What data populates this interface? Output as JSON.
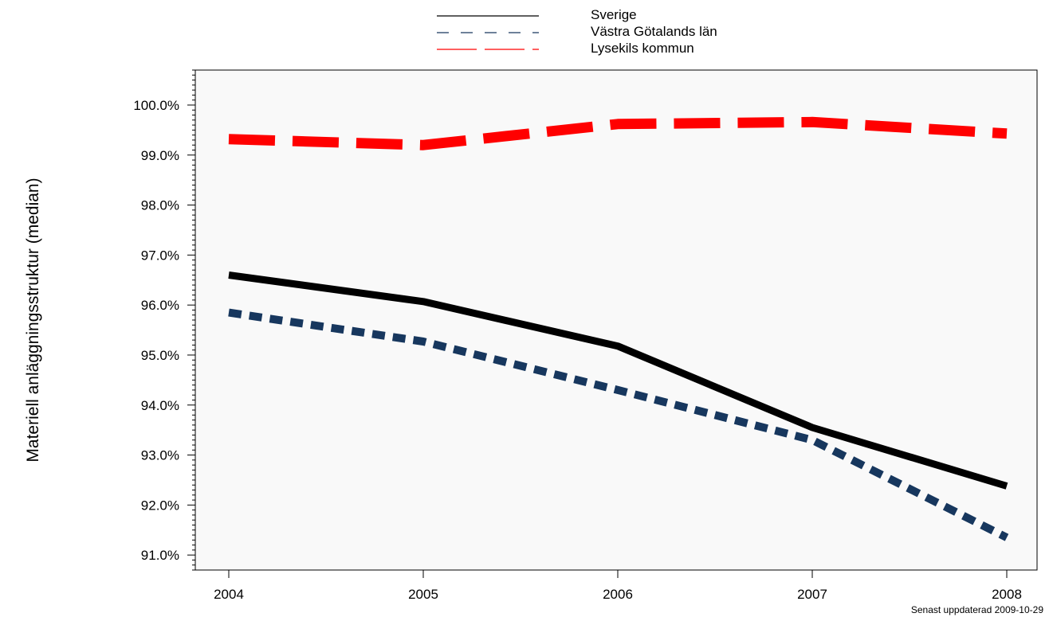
{
  "chart_data": {
    "type": "line",
    "ylabel": "Materiell anläggningsstruktur (median)",
    "x": [
      "2004",
      "2005",
      "2006",
      "2007",
      "2008"
    ],
    "ylim": [
      90.7,
      100.7
    ],
    "yticks": [
      "91.0%",
      "92.0%",
      "93.0%",
      "94.0%",
      "95.0%",
      "96.0%",
      "97.0%",
      "98.0%",
      "99.0%",
      "100.0%"
    ],
    "ytick_values": [
      91,
      92,
      93,
      94,
      95,
      96,
      97,
      98,
      99,
      100
    ],
    "grid": false,
    "legend_position": "top-center",
    "series": [
      {
        "name": "Sverige",
        "values": [
          96.6,
          96.07,
          95.18,
          93.55,
          92.38
        ],
        "color": "#000000",
        "style": "solid"
      },
      {
        "name": "Västra Götalands län",
        "values": [
          95.85,
          95.27,
          94.3,
          93.3,
          91.35
        ],
        "color": "#17375e",
        "style": "dashed"
      },
      {
        "name": "Lysekils kommun",
        "values": [
          99.32,
          99.2,
          99.62,
          99.66,
          99.43
        ],
        "color": "#ff0000",
        "style": "longdash"
      }
    ],
    "plot_background": "#f9f9f9",
    "footnote": "Senast uppdaterad 2009-10-29"
  }
}
